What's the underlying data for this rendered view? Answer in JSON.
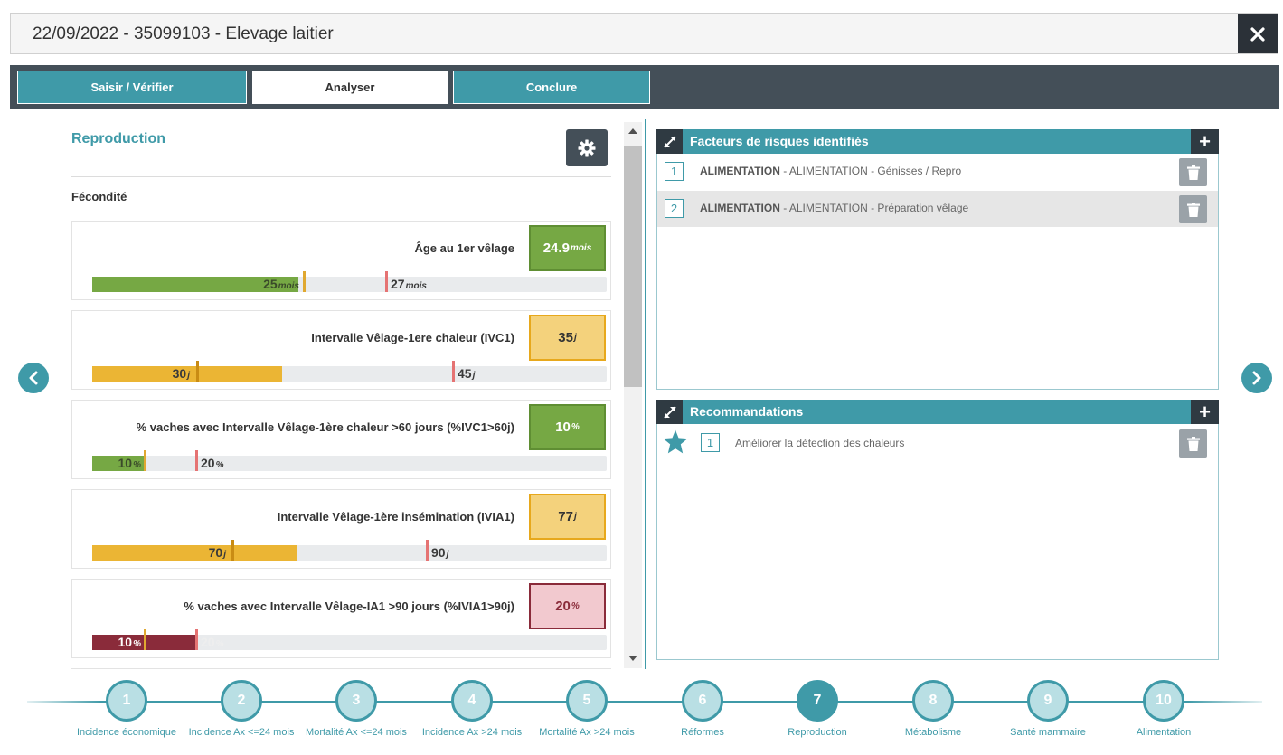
{
  "header": {
    "title": "22/09/2022 - 35099103 - Elevage laitier"
  },
  "tabs": [
    {
      "label": "Saisir / Vérifier",
      "state": "normal"
    },
    {
      "label": "Analyser",
      "state": "active"
    },
    {
      "label": "Conclure",
      "state": "normal"
    }
  ],
  "left": {
    "section_title": "Reproduction",
    "subsection": "Fécondité",
    "cards": [
      {
        "label": "Âge au 1er vêlage",
        "value": "24.9",
        "unit": "mois",
        "status": "green",
        "t1": "25",
        "t1_unit": "mois",
        "t2": "27",
        "t2_unit": "mois"
      },
      {
        "label": "Intervalle Vêlage-1ere chaleur (IVC1)",
        "value": "35",
        "unit": "j",
        "status": "yellow",
        "t1": "30",
        "t1_unit": "j",
        "t2": "45",
        "t2_unit": "j"
      },
      {
        "label": "% vaches avec Intervalle Vêlage-1ère chaleur >60 jours (%IVC1>60j)",
        "value": "10",
        "unit": "%",
        "status": "green",
        "t1": "10",
        "t1_unit": "%",
        "t2": "20",
        "t2_unit": "%"
      },
      {
        "label": "Intervalle Vêlage-1ère insémination (IVIA1)",
        "value": "77",
        "unit": "j",
        "status": "yellow",
        "t1": "70",
        "t1_unit": "j",
        "t2": "90",
        "t2_unit": "j"
      },
      {
        "label": "% vaches avec Intervalle Vêlage-IA1 >90 jours (%IVIA1>90j)",
        "value": "20",
        "unit": "%",
        "status": "red",
        "t1": "10",
        "t1_unit": "%",
        "t2": "20",
        "t2_unit": "%"
      }
    ]
  },
  "risks": {
    "title": "Facteurs de risques identifiés",
    "items": [
      {
        "num": "1",
        "category": "ALIMENTATION",
        "text": " - ALIMENTATION - Génisses / Repro"
      },
      {
        "num": "2",
        "category": "ALIMENTATION",
        "text": " - ALIMENTATION - Préparation vêlage"
      }
    ]
  },
  "recommendations": {
    "title": "Recommandations",
    "items": [
      {
        "num": "1",
        "text": "Améliorer la détection des chaleurs"
      }
    ]
  },
  "colors": {
    "teal": "#3f9aa8",
    "dark": "#444f58",
    "green": "#76a844",
    "yellow": "#f4d27c",
    "yellow_bar": "#ebb534",
    "red": "#8a2b3a",
    "red_box": "#f2c9cf"
  },
  "timeline": [
    {
      "num": "1",
      "label": "Incidence économique"
    },
    {
      "num": "2",
      "label": "Incidence Ax <=24 mois"
    },
    {
      "num": "3",
      "label": "Mortalité Ax <=24 mois"
    },
    {
      "num": "4",
      "label": "Incidence Ax >24 mois"
    },
    {
      "num": "5",
      "label": "Mortalité Ax >24 mois"
    },
    {
      "num": "6",
      "label": "Réformes"
    },
    {
      "num": "7",
      "label": "Reproduction",
      "active": true
    },
    {
      "num": "8",
      "label": "Métabolisme"
    },
    {
      "num": "9",
      "label": "Santé mammaire"
    },
    {
      "num": "10",
      "label": "Alimentation"
    }
  ],
  "icons": [
    "close-icon",
    "gear-icon",
    "chevron-left-icon",
    "chevron-right-icon",
    "expand-icon",
    "plus-icon",
    "trash-icon",
    "star-icon"
  ]
}
